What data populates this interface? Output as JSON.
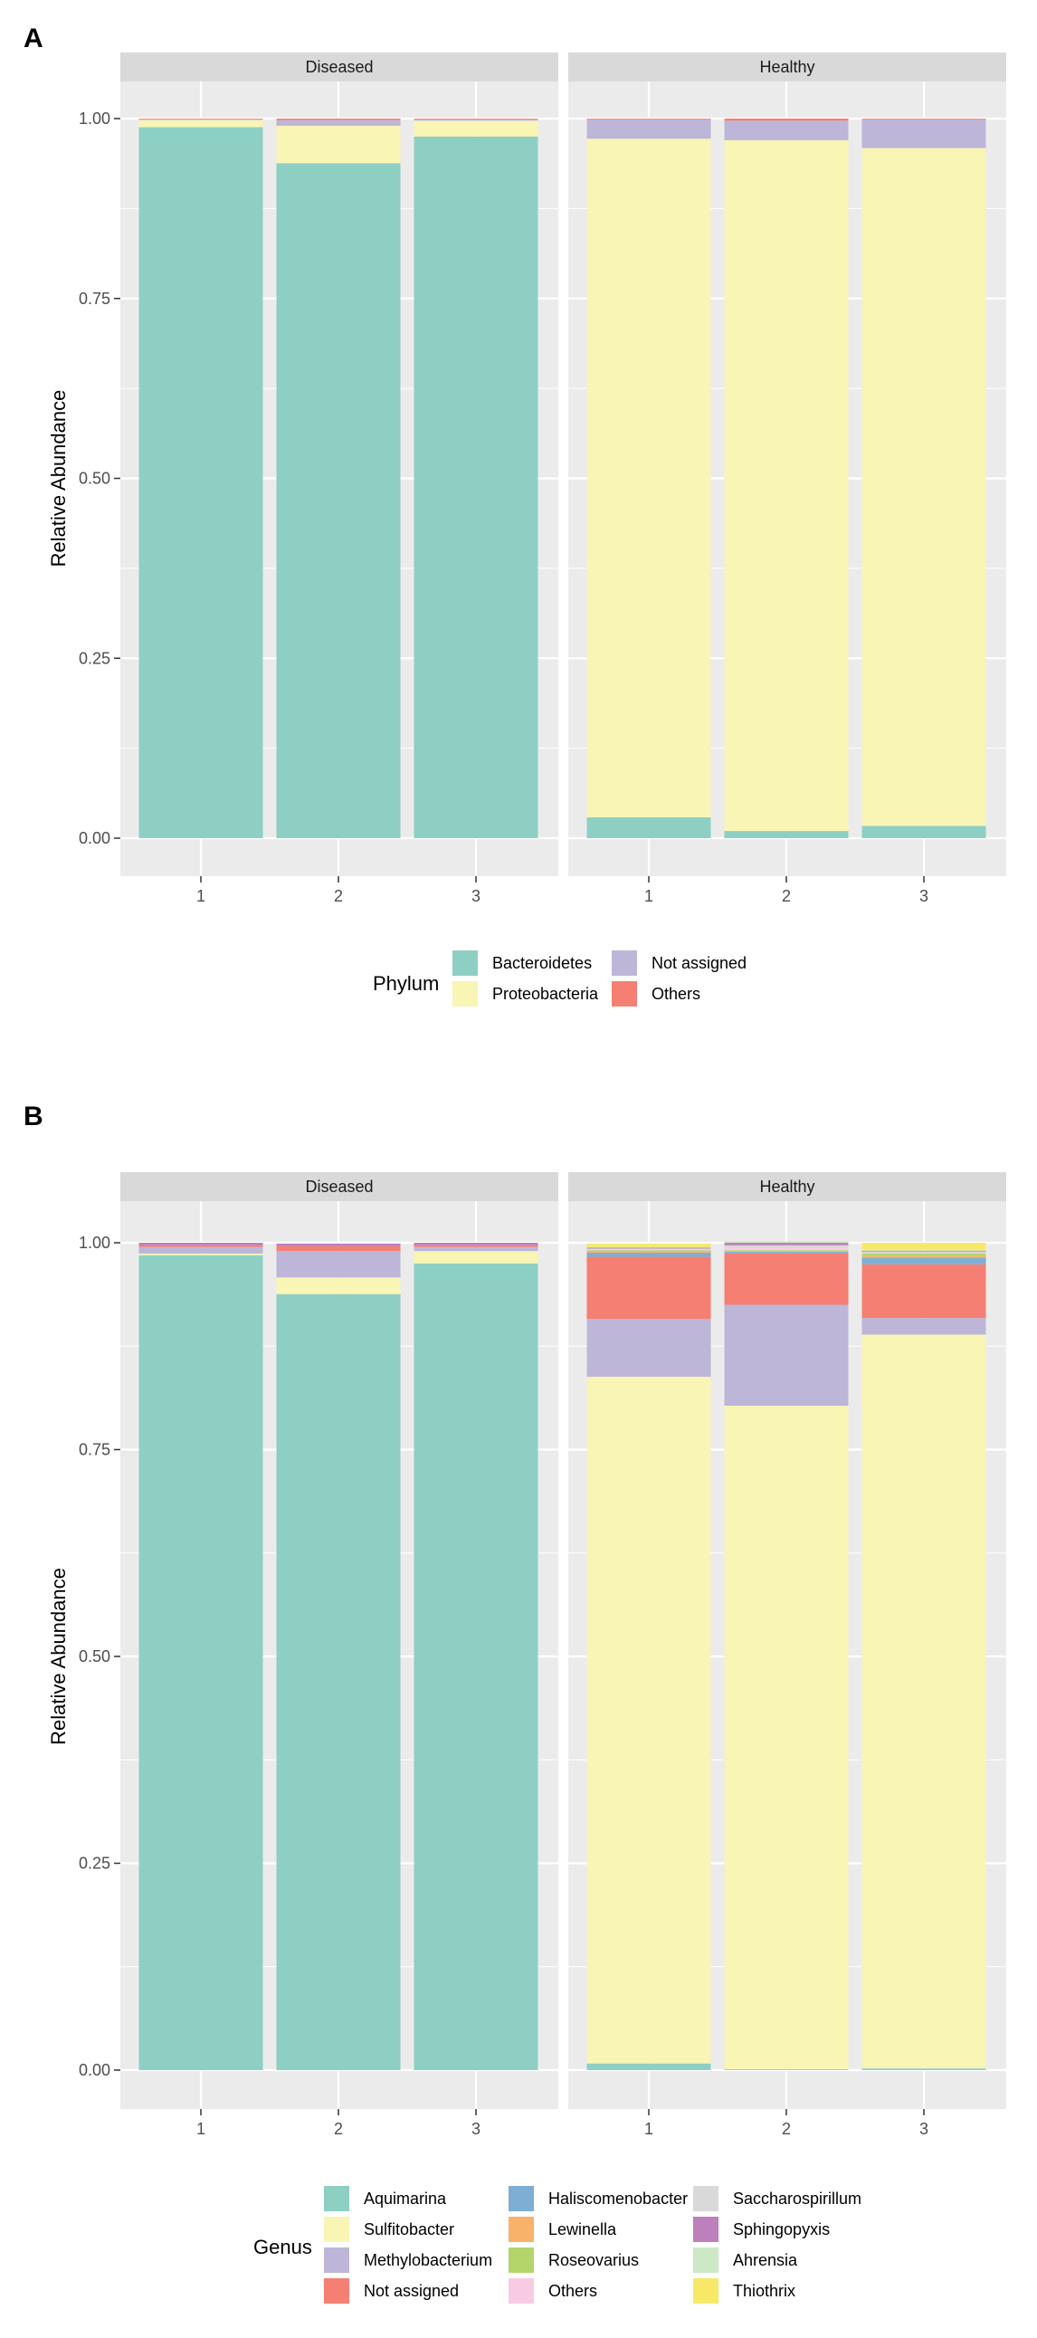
{
  "chart_data": [
    {
      "panel_label": "A",
      "type": "bar",
      "stacked": true,
      "facets": [
        "Diseased",
        "Healthy"
      ],
      "categories": [
        "1",
        "2",
        "3"
      ],
      "ylabel": "Relative Abundance",
      "ylim": [
        0,
        1
      ],
      "yticks": [
        "0.00",
        "0.25",
        "0.50",
        "0.75",
        "1.00"
      ],
      "legend_title": "Phylum",
      "series": [
        {
          "name": "Bacteroidetes",
          "color": "#8ecfc4",
          "values": {
            "Diseased": [
              0.988,
              0.938,
              0.975
            ],
            "Healthy": [
              0.029,
              0.01,
              0.017
            ]
          }
        },
        {
          "name": "Proteobacteria",
          "color": "#f8f5b5",
          "values": {
            "Diseased": [
              0.01,
              0.052,
              0.022
            ],
            "Healthy": [
              0.943,
              0.96,
              0.942
            ]
          }
        },
        {
          "name": "Not assigned",
          "color": "#bdb6d8",
          "values": {
            "Diseased": [
              0.001,
              0.008,
              0.002
            ],
            "Healthy": [
              0.027,
              0.027,
              0.04
            ]
          }
        },
        {
          "name": "Others",
          "color": "#f47f72",
          "values": {
            "Diseased": [
              0.001,
              0.002,
              0.001
            ],
            "Healthy": [
              0.001,
              0.003,
              0.001
            ]
          }
        }
      ]
    },
    {
      "panel_label": "B",
      "type": "bar",
      "stacked": true,
      "facets": [
        "Diseased",
        "Healthy"
      ],
      "categories": [
        "1",
        "2",
        "3"
      ],
      "ylabel": "Relative Abundance",
      "ylim": [
        0,
        1
      ],
      "yticks": [
        "0.00",
        "0.25",
        "0.50",
        "0.75",
        "1.00"
      ],
      "legend_title": "Genus",
      "series": [
        {
          "name": "Aquimarina",
          "color": "#8ecfc4",
          "values": {
            "Diseased": [
              0.985,
              0.938,
              0.975
            ],
            "Healthy": [
              0.008,
              0.001,
              0.002
            ]
          }
        },
        {
          "name": "Sulfitobacter",
          "color": "#f8f5b5",
          "values": {
            "Diseased": [
              0.002,
              0.02,
              0.015
            ],
            "Healthy": [
              0.83,
              0.802,
              0.887
            ]
          }
        },
        {
          "name": "Methylobacterium",
          "color": "#bdb6d8",
          "values": {
            "Diseased": [
              0.008,
              0.032,
              0.005
            ],
            "Healthy": [
              0.07,
              0.122,
              0.02
            ]
          }
        },
        {
          "name": "Not assigned",
          "color": "#f47f72",
          "values": {
            "Diseased": [
              0.002,
              0.006,
              0.002
            ],
            "Healthy": [
              0.075,
              0.062,
              0.065
            ]
          }
        },
        {
          "name": "Haliscomenobacter",
          "color": "#7eaed4",
          "values": {
            "Diseased": [
              0.0,
              0.0,
              0.0
            ],
            "Healthy": [
              0.005,
              0.002,
              0.008
            ]
          }
        },
        {
          "name": "Lewinella",
          "color": "#f9b26a",
          "values": {
            "Diseased": [
              0.0,
              0.0,
              0.0
            ],
            "Healthy": [
              0.001,
              0.001,
              0.002
            ]
          }
        },
        {
          "name": "Roseovarius",
          "color": "#b3d56a",
          "values": {
            "Diseased": [
              0.0,
              0.0,
              0.0
            ],
            "Healthy": [
              0.002,
              0.001,
              0.003
            ]
          }
        },
        {
          "name": "Others",
          "color": "#f8cbe2",
          "values": {
            "Diseased": [
              0.0,
              0.0,
              0.0
            ],
            "Healthy": [
              0.001,
              0.003,
              0.001
            ]
          }
        },
        {
          "name": "Saccharospirillum",
          "color": "#d9d9d9",
          "values": {
            "Diseased": [
              0.0,
              0.0,
              0.0
            ],
            "Healthy": [
              0.001,
              0.003,
              0.001
            ]
          }
        },
        {
          "name": "Sphingopyxis",
          "color": "#bc80bd",
          "values": {
            "Diseased": [
              0.003,
              0.003,
              0.003
            ],
            "Healthy": [
              0.001,
              0.003,
              0.001
            ]
          }
        },
        {
          "name": "Ahrensia",
          "color": "#cde8c5",
          "values": {
            "Diseased": [
              0.0,
              0.0,
              0.0
            ],
            "Healthy": [
              0.001,
              0.001,
              0.001
            ]
          }
        },
        {
          "name": "Thiothrix",
          "color": "#f8e868",
          "values": {
            "Diseased": [
              0.0,
              0.0,
              0.0
            ],
            "Healthy": [
              0.004,
              0.001,
              0.009
            ]
          }
        }
      ]
    }
  ]
}
